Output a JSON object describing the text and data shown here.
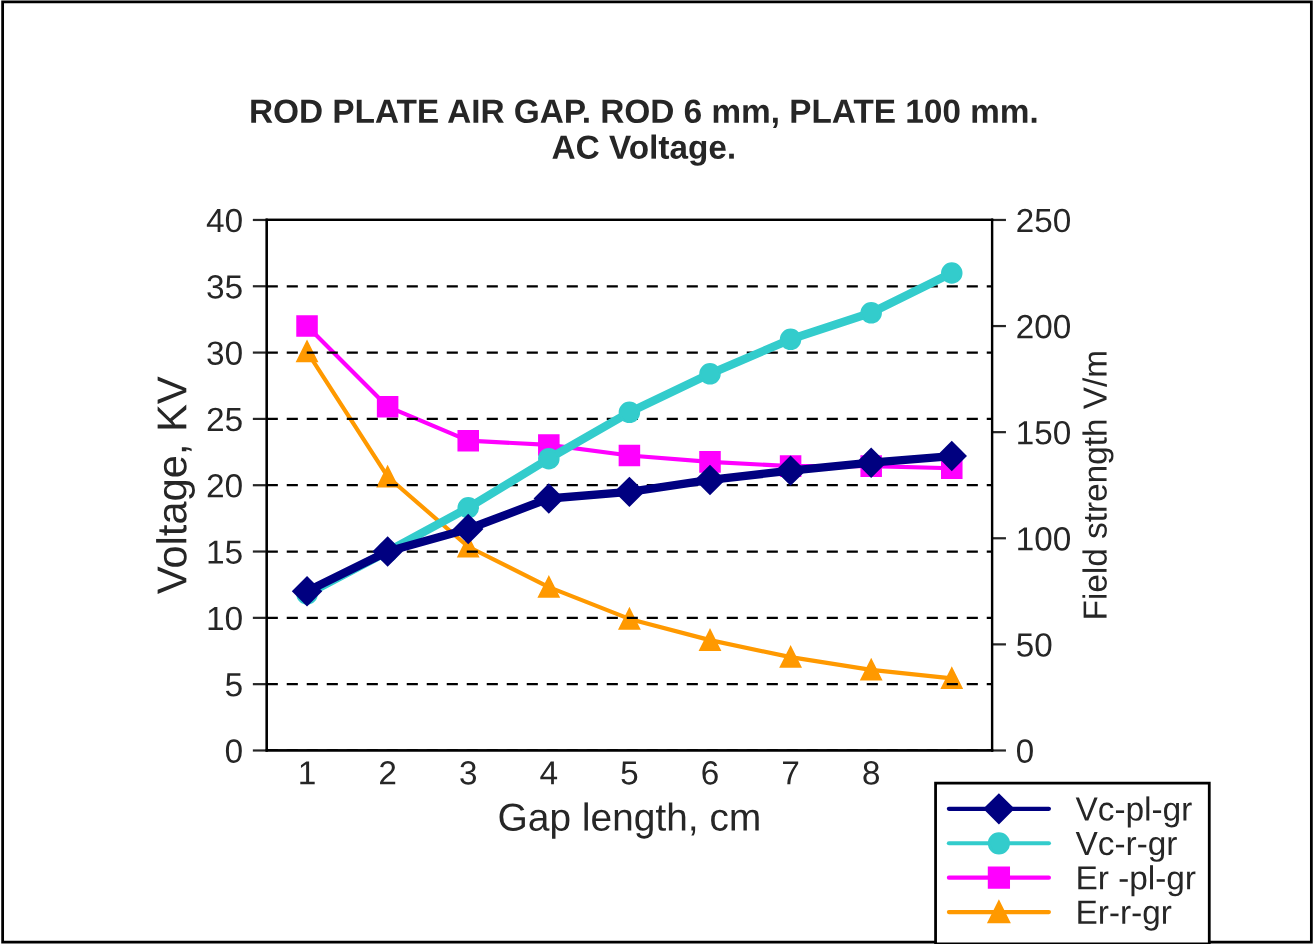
{
  "chart_data": {
    "type": "line",
    "title": "ROD PLATE AIR GAP. ROD 6 mm, PLATE 100 mm.\nAC Voltage.",
    "xlabel": "Gap length, cm",
    "ylabel": "Voltage, KV",
    "y2label": "Field strength V/m",
    "categories": [
      "1",
      "2",
      "3",
      "4",
      "5",
      "6",
      "7",
      "8",
      null
    ],
    "series": [
      {
        "name": "Vc-pl-gr",
        "color": "#000080",
        "marker": "diamond",
        "values": [
          12,
          15,
          16.7,
          19,
          19.5,
          20.4,
          21.1,
          21.7,
          22.2
        ]
      },
      {
        "name": "Vc-r-gr",
        "color": "#33cccc",
        "marker": "circle",
        "values": [
          11.8,
          15,
          18.3,
          22,
          25.5,
          28.4,
          31,
          33,
          36
        ]
      },
      {
        "name": "Er -pl-gr",
        "color": "#ff00ff",
        "marker": "square",
        "axis": "y2",
        "values": [
          200,
          162,
          146,
          144,
          139,
          136,
          134,
          134,
          133
        ]
      },
      {
        "name": "Er-r-gr",
        "color": "#ff9900",
        "marker": "triangle",
        "axis": "y2",
        "values": [
          188,
          129,
          96,
          77,
          62,
          52,
          44,
          38,
          34
        ]
      }
    ],
    "ylim": [
      0,
      40
    ],
    "yticks": [
      0,
      5,
      10,
      15,
      20,
      25,
      30,
      35,
      40
    ],
    "y2lim": [
      0,
      250
    ],
    "y2ticks": [
      0,
      50,
      100,
      150,
      200,
      250
    ],
    "grid": "y",
    "legend": "bottom right",
    "line_style": "solid"
  }
}
